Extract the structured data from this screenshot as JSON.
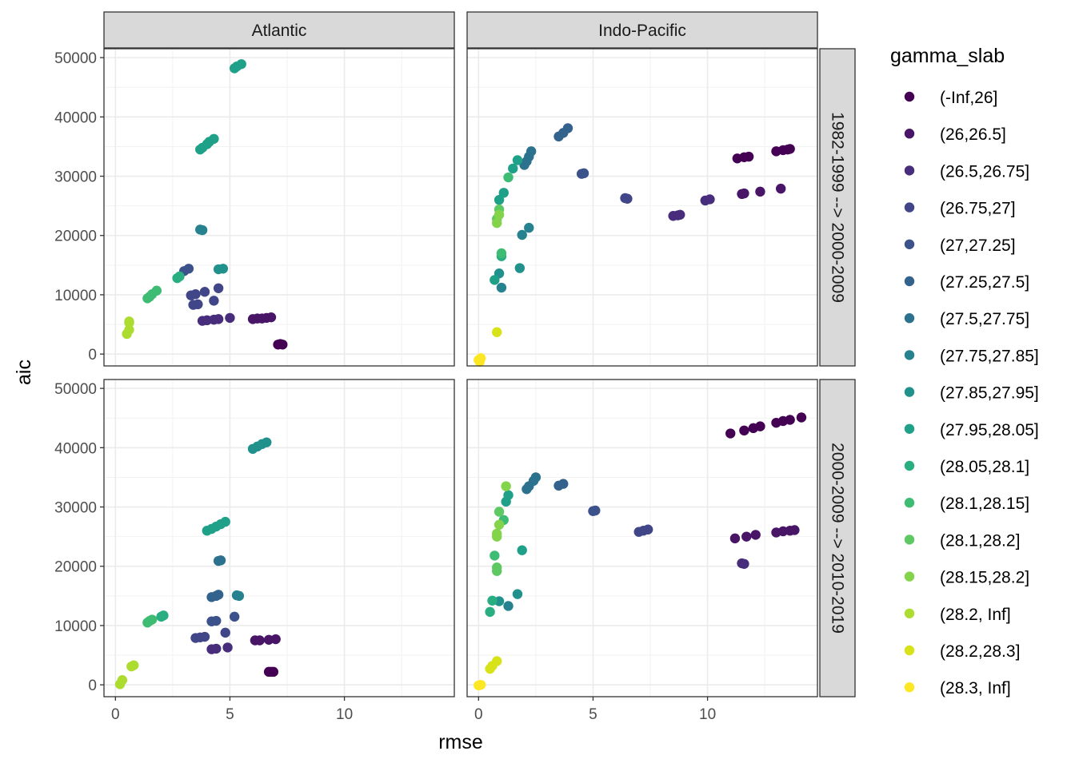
{
  "chart_data": {
    "type": "scatter",
    "xlabel": "rmse",
    "ylabel": "aic",
    "xlim": [
      -0.5,
      14.8
    ],
    "ylim": [
      -2000,
      51500
    ],
    "xticks": [
      0,
      5,
      10
    ],
    "xtick_labels": [
      "0",
      "5",
      "10"
    ],
    "yticks": [
      0,
      10000,
      20000,
      30000,
      40000,
      50000
    ],
    "ytick_labels": [
      "0",
      "10000",
      "20000",
      "30000",
      "40000",
      "50000"
    ],
    "grid": true,
    "facet_cols": [
      "Atlantic",
      "Indo-Pacific"
    ],
    "facet_rows": [
      "1982-1999 --> 2000-2009",
      "2000-2009 --> 2010-2019"
    ],
    "legend": {
      "title": "gamma_slab",
      "position": "right",
      "entries": [
        {
          "label": "(-Inf,26]",
          "color": "#440154"
        },
        {
          "label": "(26,26.5]",
          "color": "#481567"
        },
        {
          "label": "(26.5,26.75]",
          "color": "#472d7b"
        },
        {
          "label": "(26.75,27]",
          "color": "#404688"
        },
        {
          "label": "(27,27.25]",
          "color": "#3b528b"
        },
        {
          "label": "(27.25,27.5]",
          "color": "#33638d"
        },
        {
          "label": "(27.5,27.75]",
          "color": "#2c728e"
        },
        {
          "label": "(27.75,27.85]",
          "color": "#26828e"
        },
        {
          "label": "(27.85,27.95]",
          "color": "#21918c"
        },
        {
          "label": "(27.95,28.05]",
          "color": "#1fa088"
        },
        {
          "label": "(28.05,28.1]",
          "color": "#28ae80"
        },
        {
          "label": "(28.1,28.15]",
          "color": "#3fbc73"
        },
        {
          "label": "(28.1,28.2]",
          "color": "#5ec962"
        },
        {
          "label": "(28.15,28.2]",
          "color": "#84d44b"
        },
        {
          "label": "(28.2, Inf]",
          "color": "#addc30"
        },
        {
          "label": "(28.2,28.3]",
          "color": "#d8e219"
        },
        {
          "label": "(28.3, Inf]",
          "color": "#fde725"
        }
      ]
    },
    "panels": [
      {
        "col": "Atlantic",
        "row": "1982-1999 --> 2000-2009",
        "points": [
          {
            "c": 0,
            "x": 7.1,
            "y": 1600
          },
          {
            "c": 0,
            "x": 7.2,
            "y": 1700
          },
          {
            "c": 0,
            "x": 7.3,
            "y": 1600
          },
          {
            "c": 1,
            "x": 6.0,
            "y": 5900
          },
          {
            "c": 1,
            "x": 6.2,
            "y": 6000
          },
          {
            "c": 1,
            "x": 6.4,
            "y": 6000
          },
          {
            "c": 1,
            "x": 6.6,
            "y": 6100
          },
          {
            "c": 1,
            "x": 6.8,
            "y": 6200
          },
          {
            "c": 2,
            "x": 3.8,
            "y": 5600
          },
          {
            "c": 2,
            "x": 4.0,
            "y": 5700
          },
          {
            "c": 2,
            "x": 4.3,
            "y": 5800
          },
          {
            "c": 2,
            "x": 4.5,
            "y": 5900
          },
          {
            "c": 2,
            "x": 5.0,
            "y": 6100
          },
          {
            "c": 3,
            "x": 3.4,
            "y": 8300
          },
          {
            "c": 3,
            "x": 3.6,
            "y": 8400
          },
          {
            "c": 3,
            "x": 4.3,
            "y": 9000
          },
          {
            "c": 3,
            "x": 3.3,
            "y": 9900
          },
          {
            "c": 3,
            "x": 3.5,
            "y": 10100
          },
          {
            "c": 3,
            "x": 3.9,
            "y": 10500
          },
          {
            "c": 3,
            "x": 4.5,
            "y": 11100
          },
          {
            "c": 4,
            "x": 3.0,
            "y": 14000
          },
          {
            "c": 4,
            "x": 3.2,
            "y": 14400
          },
          {
            "c": 7,
            "x": 3.7,
            "y": 21000
          },
          {
            "c": 7,
            "x": 3.8,
            "y": 20900
          },
          {
            "c": 8,
            "x": 4.5,
            "y": 14300
          },
          {
            "c": 8,
            "x": 4.7,
            "y": 14400
          },
          {
            "c": 9,
            "x": 3.7,
            "y": 34500
          },
          {
            "c": 9,
            "x": 3.8,
            "y": 34800
          },
          {
            "c": 9,
            "x": 4.0,
            "y": 35400
          },
          {
            "c": 9,
            "x": 4.1,
            "y": 35800
          },
          {
            "c": 9,
            "x": 4.3,
            "y": 36300
          },
          {
            "c": 9,
            "x": 5.2,
            "y": 48200
          },
          {
            "c": 9,
            "x": 5.3,
            "y": 48500
          },
          {
            "c": 9,
            "x": 5.5,
            "y": 48900
          },
          {
            "c": 10,
            "x": 2.7,
            "y": 12800
          },
          {
            "c": 10,
            "x": 2.8,
            "y": 13100
          },
          {
            "c": 11,
            "x": 1.4,
            "y": 9400
          },
          {
            "c": 11,
            "x": 1.5,
            "y": 9700
          },
          {
            "c": 11,
            "x": 1.6,
            "y": 10100
          },
          {
            "c": 11,
            "x": 1.8,
            "y": 10700
          },
          {
            "c": 14,
            "x": 0.6,
            "y": 4100
          },
          {
            "c": 14,
            "x": 0.5,
            "y": 3400
          },
          {
            "c": 14,
            "x": 0.6,
            "y": 5300
          },
          {
            "c": 14,
            "x": 0.6,
            "y": 5500
          }
        ]
      },
      {
        "col": "Indo-Pacific",
        "row": "1982-1999 --> 2000-2009",
        "points": [
          {
            "c": 0,
            "x": 11.3,
            "y": 33000
          },
          {
            "c": 0,
            "x": 11.6,
            "y": 33200
          },
          {
            "c": 0,
            "x": 11.8,
            "y": 33300
          },
          {
            "c": 0,
            "x": 13.0,
            "y": 34200
          },
          {
            "c": 0,
            "x": 13.3,
            "y": 34400
          },
          {
            "c": 0,
            "x": 13.5,
            "y": 34500
          },
          {
            "c": 0,
            "x": 13.6,
            "y": 34600
          },
          {
            "c": 1,
            "x": 11.5,
            "y": 27000
          },
          {
            "c": 1,
            "x": 11.6,
            "y": 27100
          },
          {
            "c": 1,
            "x": 12.3,
            "y": 27400
          },
          {
            "c": 1,
            "x": 13.2,
            "y": 27900
          },
          {
            "c": 2,
            "x": 8.5,
            "y": 23300
          },
          {
            "c": 2,
            "x": 8.7,
            "y": 23400
          },
          {
            "c": 2,
            "x": 8.8,
            "y": 23500
          },
          {
            "c": 2,
            "x": 9.9,
            "y": 25900
          },
          {
            "c": 2,
            "x": 10.1,
            "y": 26100
          },
          {
            "c": 3,
            "x": 6.4,
            "y": 26300
          },
          {
            "c": 3,
            "x": 6.5,
            "y": 26200
          },
          {
            "c": 4,
            "x": 4.5,
            "y": 30400
          },
          {
            "c": 4,
            "x": 4.6,
            "y": 30500
          },
          {
            "c": 5,
            "x": 3.5,
            "y": 36700
          },
          {
            "c": 5,
            "x": 3.7,
            "y": 37300
          },
          {
            "c": 5,
            "x": 3.9,
            "y": 38100
          },
          {
            "c": 6,
            "x": 2.0,
            "y": 31900
          },
          {
            "c": 6,
            "x": 2.1,
            "y": 32500
          },
          {
            "c": 6,
            "x": 2.2,
            "y": 33300
          },
          {
            "c": 6,
            "x": 2.3,
            "y": 34200
          },
          {
            "c": 7,
            "x": 1.0,
            "y": 11200
          },
          {
            "c": 7,
            "x": 2.2,
            "y": 21300
          },
          {
            "c": 7,
            "x": 1.9,
            "y": 20100
          },
          {
            "c": 8,
            "x": 1.8,
            "y": 14500
          },
          {
            "c": 8,
            "x": 0.9,
            "y": 13600
          },
          {
            "c": 9,
            "x": 1.5,
            "y": 31300
          },
          {
            "c": 9,
            "x": 1.7,
            "y": 32700
          },
          {
            "c": 9,
            "x": 0.9,
            "y": 26000
          },
          {
            "c": 9,
            "x": 1.1,
            "y": 27200
          },
          {
            "c": 9,
            "x": 0.7,
            "y": 12500
          },
          {
            "c": 10,
            "x": 1.0,
            "y": 16500
          },
          {
            "c": 11,
            "x": 1.3,
            "y": 29800
          },
          {
            "c": 11,
            "x": 1.0,
            "y": 17000
          },
          {
            "c": 12,
            "x": 0.9,
            "y": 24400
          },
          {
            "c": 12,
            "x": 0.8,
            "y": 22800
          },
          {
            "c": 13,
            "x": 0.8,
            "y": 22100
          },
          {
            "c": 13,
            "x": 0.9,
            "y": 23500
          },
          {
            "c": 15,
            "x": 0.8,
            "y": 3700
          },
          {
            "c": 16,
            "x": 0.0,
            "y": -1000
          },
          {
            "c": 16,
            "x": 0.1,
            "y": -700
          },
          {
            "c": 16,
            "x": 0.05,
            "y": -1300
          }
        ]
      },
      {
        "col": "Atlantic",
        "row": "2000-2009 --> 2010-2019",
        "points": [
          {
            "c": 0,
            "x": 6.7,
            "y": 2200
          },
          {
            "c": 0,
            "x": 6.8,
            "y": 2200
          },
          {
            "c": 0,
            "x": 6.9,
            "y": 2200
          },
          {
            "c": 1,
            "x": 6.1,
            "y": 7500
          },
          {
            "c": 1,
            "x": 6.3,
            "y": 7500
          },
          {
            "c": 1,
            "x": 6.7,
            "y": 7600
          },
          {
            "c": 1,
            "x": 7.0,
            "y": 7700
          },
          {
            "c": 2,
            "x": 4.2,
            "y": 6000
          },
          {
            "c": 2,
            "x": 4.4,
            "y": 6100
          },
          {
            "c": 2,
            "x": 4.9,
            "y": 6300
          },
          {
            "c": 3,
            "x": 3.5,
            "y": 7900
          },
          {
            "c": 3,
            "x": 3.7,
            "y": 8000
          },
          {
            "c": 3,
            "x": 3.9,
            "y": 8100
          },
          {
            "c": 3,
            "x": 4.8,
            "y": 8800
          },
          {
            "c": 4,
            "x": 4.2,
            "y": 10700
          },
          {
            "c": 4,
            "x": 4.4,
            "y": 10800
          },
          {
            "c": 4,
            "x": 5.2,
            "y": 11500
          },
          {
            "c": 5,
            "x": 4.2,
            "y": 14800
          },
          {
            "c": 5,
            "x": 4.4,
            "y": 15000
          },
          {
            "c": 5,
            "x": 4.5,
            "y": 15200
          },
          {
            "c": 6,
            "x": 4.5,
            "y": 20900
          },
          {
            "c": 6,
            "x": 4.6,
            "y": 21000
          },
          {
            "c": 7,
            "x": 5.3,
            "y": 15100
          },
          {
            "c": 7,
            "x": 5.4,
            "y": 15000
          },
          {
            "c": 8,
            "x": 6.0,
            "y": 39800
          },
          {
            "c": 8,
            "x": 6.2,
            "y": 40200
          },
          {
            "c": 8,
            "x": 6.4,
            "y": 40600
          },
          {
            "c": 8,
            "x": 6.6,
            "y": 40900
          },
          {
            "c": 9,
            "x": 4.0,
            "y": 26000
          },
          {
            "c": 9,
            "x": 4.2,
            "y": 26300
          },
          {
            "c": 9,
            "x": 4.4,
            "y": 26700
          },
          {
            "c": 9,
            "x": 4.6,
            "y": 27100
          },
          {
            "c": 9,
            "x": 4.8,
            "y": 27500
          },
          {
            "c": 10,
            "x": 2.1,
            "y": 11700
          },
          {
            "c": 10,
            "x": 2.0,
            "y": 11500
          },
          {
            "c": 11,
            "x": 1.4,
            "y": 10500
          },
          {
            "c": 11,
            "x": 1.5,
            "y": 10800
          },
          {
            "c": 11,
            "x": 1.6,
            "y": 11000
          },
          {
            "c": 14,
            "x": 0.7,
            "y": 3100
          },
          {
            "c": 14,
            "x": 0.8,
            "y": 3300
          },
          {
            "c": 14,
            "x": 0.3,
            "y": 800
          },
          {
            "c": 14,
            "x": 0.2,
            "y": 100
          }
        ]
      },
      {
        "col": "Indo-Pacific",
        "row": "2000-2009 --> 2010-2019",
        "points": [
          {
            "c": 0,
            "x": 11.0,
            "y": 42400
          },
          {
            "c": 0,
            "x": 11.6,
            "y": 42900
          },
          {
            "c": 0,
            "x": 12.0,
            "y": 43300
          },
          {
            "c": 0,
            "x": 12.3,
            "y": 43600
          },
          {
            "c": 0,
            "x": 13.0,
            "y": 44200
          },
          {
            "c": 0,
            "x": 13.3,
            "y": 44500
          },
          {
            "c": 0,
            "x": 13.6,
            "y": 44700
          },
          {
            "c": 0,
            "x": 14.1,
            "y": 45100
          },
          {
            "c": 1,
            "x": 11.2,
            "y": 24700
          },
          {
            "c": 1,
            "x": 11.7,
            "y": 25000
          },
          {
            "c": 1,
            "x": 12.1,
            "y": 25300
          },
          {
            "c": 1,
            "x": 13.0,
            "y": 25700
          },
          {
            "c": 1,
            "x": 13.3,
            "y": 25900
          },
          {
            "c": 1,
            "x": 13.6,
            "y": 26000
          },
          {
            "c": 1,
            "x": 13.8,
            "y": 26100
          },
          {
            "c": 2,
            "x": 11.5,
            "y": 20500
          },
          {
            "c": 2,
            "x": 11.6,
            "y": 20400
          },
          {
            "c": 3,
            "x": 7.0,
            "y": 25800
          },
          {
            "c": 3,
            "x": 7.2,
            "y": 26000
          },
          {
            "c": 3,
            "x": 7.4,
            "y": 26200
          },
          {
            "c": 4,
            "x": 5.0,
            "y": 29300
          },
          {
            "c": 4,
            "x": 5.1,
            "y": 29400
          },
          {
            "c": 5,
            "x": 3.5,
            "y": 33600
          },
          {
            "c": 5,
            "x": 3.7,
            "y": 33900
          },
          {
            "c": 6,
            "x": 2.1,
            "y": 33000
          },
          {
            "c": 6,
            "x": 2.2,
            "y": 33500
          },
          {
            "c": 6,
            "x": 2.4,
            "y": 34400
          },
          {
            "c": 6,
            "x": 2.5,
            "y": 35000
          },
          {
            "c": 7,
            "x": 1.3,
            "y": 13300
          },
          {
            "c": 8,
            "x": 1.7,
            "y": 15300
          },
          {
            "c": 8,
            "x": 0.9,
            "y": 14100
          },
          {
            "c": 9,
            "x": 1.9,
            "y": 22700
          },
          {
            "c": 9,
            "x": 1.2,
            "y": 30900
          },
          {
            "c": 9,
            "x": 1.3,
            "y": 32000
          },
          {
            "c": 10,
            "x": 0.6,
            "y": 14200
          },
          {
            "c": 10,
            "x": 0.5,
            "y": 12300
          },
          {
            "c": 11,
            "x": 1.1,
            "y": 27800
          },
          {
            "c": 11,
            "x": 0.7,
            "y": 21800
          },
          {
            "c": 12,
            "x": 0.8,
            "y": 19800
          },
          {
            "c": 12,
            "x": 0.8,
            "y": 19200
          },
          {
            "c": 12,
            "x": 0.9,
            "y": 29200
          },
          {
            "c": 13,
            "x": 0.8,
            "y": 25000
          },
          {
            "c": 13,
            "x": 0.8,
            "y": 25500
          },
          {
            "c": 13,
            "x": 0.9,
            "y": 27000
          },
          {
            "c": 13,
            "x": 1.2,
            "y": 33500
          },
          {
            "c": 15,
            "x": 0.5,
            "y": 2700
          },
          {
            "c": 15,
            "x": 0.6,
            "y": 3200
          },
          {
            "c": 15,
            "x": 0.8,
            "y": 4000
          },
          {
            "c": 16,
            "x": 0.0,
            "y": -100
          },
          {
            "c": 16,
            "x": 0.1,
            "y": 0
          }
        ]
      }
    ]
  }
}
